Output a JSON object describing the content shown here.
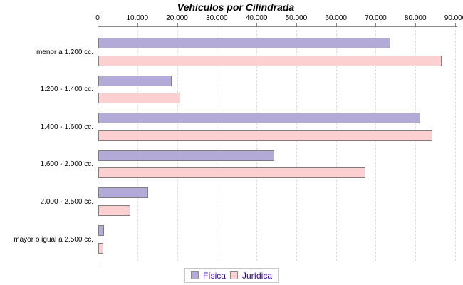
{
  "chart_data": {
    "type": "bar",
    "orientation": "horizontal",
    "title": "Vehículos por Cilindrada",
    "categories": [
      "menor a 1.200 cc.",
      "1.200 - 1.400 cc.",
      "1.400 - 1.600 cc.",
      "1.600 - 2.000 cc.",
      "2.000 - 2.500 cc.",
      "mayor o igual a 2.500 cc."
    ],
    "series": [
      {
        "name": "Física",
        "color": "#b4aad7",
        "values": [
          73500,
          18400,
          81000,
          44300,
          12600,
          1500
        ]
      },
      {
        "name": "Jurídica",
        "color": "#fcd0d0",
        "values": [
          86400,
          20700,
          84100,
          67200,
          8000,
          1300
        ]
      }
    ],
    "xlim": [
      0,
      90000
    ],
    "x_tick_values": [
      0,
      10000,
      20000,
      30000,
      40000,
      50000,
      60000,
      70000,
      80000,
      90000
    ],
    "x_tick_labels": [
      "0",
      "10.000",
      "20.000",
      "30.000",
      "40.000",
      "50.000",
      "60.000",
      "70.000",
      "80.000",
      "90.000"
    ],
    "grid": "dashed-vertical",
    "legend_position": "bottom",
    "bar_border_color": "#7f7f7f"
  }
}
